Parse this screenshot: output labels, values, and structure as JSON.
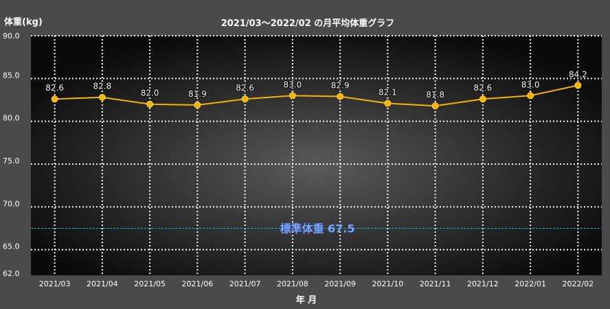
{
  "chart_data": {
    "type": "line",
    "title": "2021/03～2022/02 の月平均体重グラフ",
    "ylabel": "体重(kg)",
    "xlabel": "年 月",
    "ylim": [
      62,
      90
    ],
    "yticks": [
      "90.0",
      "85.0",
      "80.0",
      "75.0",
      "70.0",
      "65.0",
      "62.0"
    ],
    "categories": [
      "2021/03",
      "2021/04",
      "2021/05",
      "2021/06",
      "2021/07",
      "2021/08",
      "2021/09",
      "2021/10",
      "2021/11",
      "2021/12",
      "2022/01",
      "2022/02"
    ],
    "series": [
      {
        "values": [
          82.6,
          82.8,
          82.0,
          81.9,
          82.6,
          83.0,
          82.9,
          82.1,
          81.8,
          82.6,
          83.0,
          84.2
        ],
        "labels": [
          "82.6",
          "82.8",
          "82.0",
          "81.9",
          "82.6",
          "83.0",
          "82.9",
          "82.1",
          "81.8",
          "82.6",
          "83.0",
          "84.2"
        ],
        "color": "#f5b400"
      }
    ],
    "reference_line": {
      "value": 67.5,
      "label": "標準体重 67.5",
      "color": "#19b6d8",
      "label_color": "#7da6ff"
    },
    "grid": true,
    "grid_color": "#ffffff",
    "background_color": "#000000"
  }
}
